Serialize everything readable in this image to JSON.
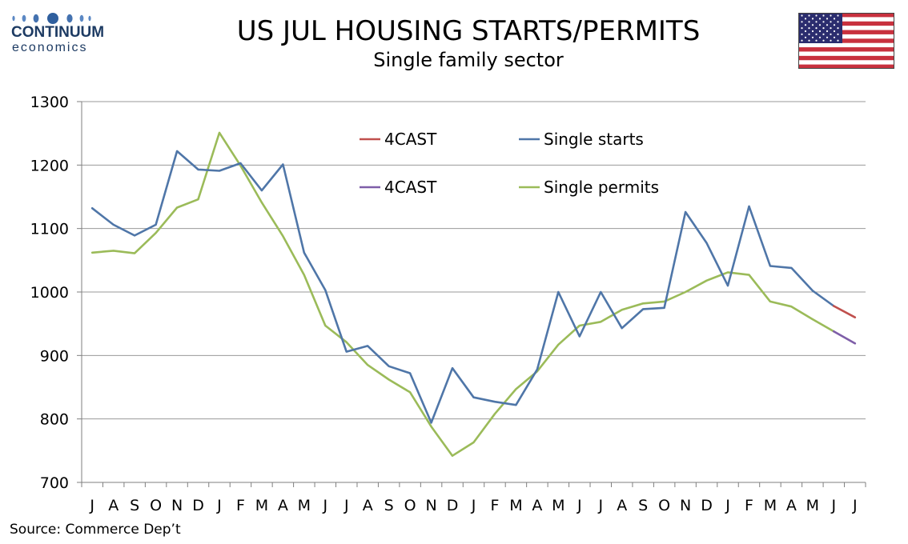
{
  "header": {
    "title": "US JUL HOUSING STARTS/PERMITS",
    "subtitle": "Single family sector"
  },
  "logo": {
    "name": "CONTINUUM",
    "sub": "economics"
  },
  "flag": {
    "icon": "us-flag-icon"
  },
  "footer": {
    "source": "Source: Commerce Dep’t"
  },
  "chart_data": {
    "type": "line",
    "title": "US JUL HOUSING STARTS/PERMITS",
    "subtitle": "Single family sector",
    "x": [
      "J",
      "A",
      "S",
      "O",
      "N",
      "D",
      "J",
      "F",
      "M",
      "A",
      "M",
      "J",
      "J",
      "A",
      "S",
      "O",
      "N",
      "D",
      "J",
      "F",
      "M",
      "A",
      "M",
      "J",
      "J",
      "A",
      "S",
      "O",
      "N",
      "D",
      "J",
      "F",
      "M",
      "A",
      "M",
      "J",
      "J"
    ],
    "ylim": [
      700,
      1300
    ],
    "yticks": [
      700,
      800,
      900,
      1000,
      1100,
      1200,
      1300
    ],
    "grid": true,
    "legend_position": "top-center",
    "series": [
      {
        "name": "4CAST",
        "color": "#c0504d",
        "values": [
          null,
          null,
          null,
          null,
          null,
          null,
          null,
          null,
          null,
          null,
          null,
          null,
          null,
          null,
          null,
          null,
          null,
          null,
          null,
          null,
          null,
          null,
          null,
          null,
          null,
          null,
          null,
          null,
          null,
          null,
          null,
          null,
          null,
          null,
          null,
          978,
          960
        ]
      },
      {
        "name": "Single starts",
        "color": "#4f76a8",
        "values": [
          1132,
          1106,
          1089,
          1106,
          1222,
          1193,
          1191,
          1203,
          1160,
          1201,
          1062,
          1003,
          906,
          915,
          883,
          872,
          794,
          880,
          834,
          827,
          822,
          878,
          1000,
          930,
          1000,
          943,
          973,
          975,
          1126,
          1077,
          1010,
          1135,
          1041,
          1038,
          1002,
          978,
          null
        ]
      },
      {
        "name": "4CAST",
        "color": "#7e5ea8",
        "values": [
          null,
          null,
          null,
          null,
          null,
          null,
          null,
          null,
          null,
          null,
          null,
          null,
          null,
          null,
          null,
          null,
          null,
          null,
          null,
          null,
          null,
          null,
          null,
          null,
          null,
          null,
          null,
          null,
          null,
          null,
          null,
          null,
          null,
          null,
          null,
          938,
          919
        ]
      },
      {
        "name": "Single permits",
        "color": "#9bbb59",
        "values": [
          1062,
          1065,
          1061,
          1093,
          1133,
          1146,
          1251,
          1199,
          1141,
          1088,
          1027,
          947,
          921,
          885,
          862,
          842,
          788,
          742,
          763,
          808,
          847,
          875,
          917,
          947,
          953,
          972,
          982,
          985,
          1000,
          1018,
          1031,
          1027,
          985,
          977,
          957,
          938,
          null
        ]
      }
    ]
  }
}
